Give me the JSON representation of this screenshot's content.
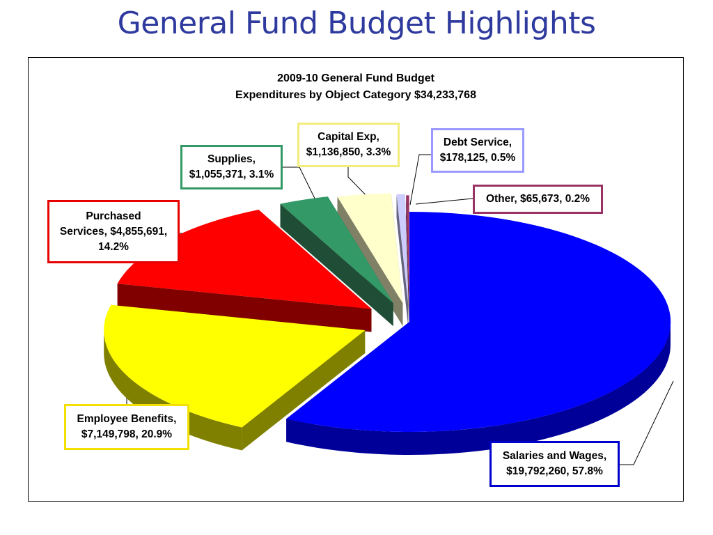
{
  "slide": {
    "title": "General Fund Budget Highlights"
  },
  "chart_data": {
    "type": "pie",
    "title": "2009-10 General Fund Budget",
    "subtitle": "Expenditures by Object Category $34,233,768",
    "total": 34233768,
    "slices": [
      {
        "name": "Salaries and Wages",
        "value": 19792260,
        "percent": 57.8,
        "label": [
          "Salaries and Wages,",
          "$19,792,260, 57.8%"
        ],
        "color": "#0000FF",
        "side": "#000099",
        "border": "#0000CC"
      },
      {
        "name": "Employee Benefits",
        "value": 7149798,
        "percent": 20.9,
        "label": [
          "Employee Benefits,",
          "$7,149,798, 20.9%"
        ],
        "color": "#FFFF00",
        "side": "#808000",
        "border": "#F2E100"
      },
      {
        "name": "Purchased Services",
        "value": 4855691,
        "percent": 14.2,
        "label": [
          "Purchased",
          "Services, $4,855,691,",
          "14.2%"
        ],
        "color": "#FF0000",
        "side": "#800000",
        "border": "#E60000"
      },
      {
        "name": "Supplies",
        "value": 1055371,
        "percent": 3.1,
        "label": [
          "Supplies,",
          "$1,055,371, 3.1%"
        ],
        "color": "#339966",
        "side": "#1F4D36",
        "border": "#339966"
      },
      {
        "name": "Capital Exp",
        "value": 1136850,
        "percent": 3.3,
        "label": [
          "Capital Exp,",
          "$1,136,850, 3.3%"
        ],
        "color": "#FFFFCC",
        "side": "#808066",
        "border": "#F2EC7A"
      },
      {
        "name": "Debt Service",
        "value": 178125,
        "percent": 0.5,
        "label": [
          "Debt Service,",
          "$178,125, 0.5%"
        ],
        "color": "#CCCCFF",
        "side": "#666680",
        "border": "#9999FF"
      },
      {
        "name": "Other",
        "value": 65673,
        "percent": 0.2,
        "label": [
          "Other, $65,673, 0.2%"
        ],
        "color": "#993366",
        "side": "#4D1A33",
        "border": "#993366"
      }
    ]
  }
}
